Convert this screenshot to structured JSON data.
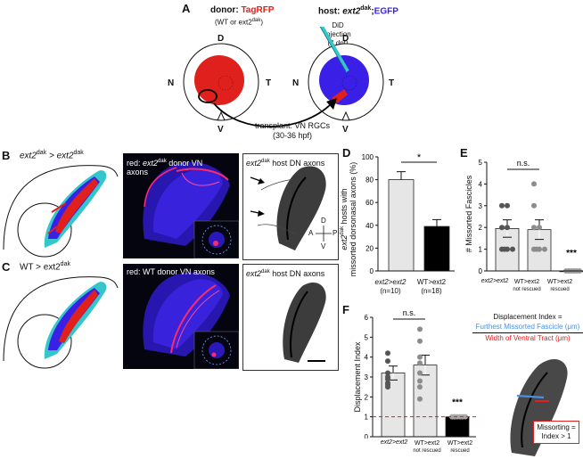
{
  "panels": {
    "A": "A",
    "B": "B",
    "C": "C",
    "D": "D",
    "E": "E",
    "F": "F"
  },
  "panel_a": {
    "donor_label": "donor:",
    "donor_name": "TagRFP",
    "donor_sub": "(WT or ext2",
    "donor_sub_sup": "dak",
    "donor_sub_end": ")",
    "host_label": "host:",
    "host_gene": "ext2",
    "host_gene_sup": "dak",
    "host_sep": ";",
    "host_egfp": "EGFP",
    "did_line1": "DiD",
    "did_line2": "injection",
    "did_line3": "(4 dpf)",
    "eye_left": {
      "top": "D",
      "left": "N",
      "right": "T",
      "bottom": "V"
    },
    "eye_right": {
      "top": "D",
      "left": "N",
      "right": "T",
      "bottom": "V"
    },
    "transplant_line1": "transplant: VN RGCs",
    "transplant_line2": "(30-36 hpf)",
    "colors": {
      "red": "#e0201c",
      "blue": "#3a1fe6",
      "teal": "#35c6cc"
    }
  },
  "panel_b": {
    "row_title_gene": "ext2",
    "row_title_sup": "dak",
    "row_title_mid": " > ext2",
    "row_title_sup2": "dak",
    "img1_cap_pre": "red: ",
    "img1_cap_gene": "ext2",
    "img1_cap_sup": "dak",
    "img1_cap_post": " donor VN",
    "img1_cap_line2": "axons",
    "img2_cap_gene": "ext2",
    "img2_cap_sup": "dak",
    "img2_cap_post": " host DN axons",
    "compass": {
      "d": "D",
      "v": "V",
      "a": "A",
      "p": "P"
    }
  },
  "panel_c": {
    "row_title_pre": "WT > ext2",
    "row_title_sup": "dak",
    "img1_cap": "red: WT donor VN axons",
    "img2_cap_gene": "ext2",
    "img2_cap_sup": "dak",
    "img2_cap_post": " host DN axons"
  },
  "panel_d": {
    "ylabel_line1": "ext2",
    "ylabel_sup": "dak",
    "ylabel_line1_post": " hosts with",
    "ylabel_line2": "missorted dorsonasal axons (%)",
    "sig": "*",
    "cat1": "ext2>ext2",
    "cat1_n": "(n=10)",
    "cat2": "WT>ext2",
    "cat2_n": "(n=18)"
  },
  "panel_e": {
    "ylabel": "# Missorted Fascicles",
    "sig": "n.s.",
    "sig2": "***",
    "cat1": "ext2>ext2",
    "cat2": "WT>ext2",
    "cat2_sub": "not rescued",
    "cat3": "WT>ext2",
    "cat3_sub": "rescued"
  },
  "panel_f": {
    "ylabel": "Displacement Index",
    "sig": "n.s.",
    "sig2": "***",
    "cat1": "ext2>ext2",
    "cat2": "WT>ext2",
    "cat2_sub": "not rescued",
    "cat3": "WT>ext2",
    "cat3_sub": "rescued",
    "legend_title": "Displacement Index =",
    "legend_num": "Furthest Missorted Fascicle (μm)",
    "legend_den": "Width of Ventral Tract (μm)",
    "box_line1": "Missorting =",
    "box_line2": "Index > 1"
  },
  "chart_data": [
    {
      "type": "bar",
      "panel": "D",
      "categories": [
        "ext2>ext2",
        "WT>ext2"
      ],
      "values": [
        80,
        39
      ],
      "errors": [
        7,
        6
      ],
      "colors": [
        "#e6e6e6",
        "#000000"
      ],
      "ylim": [
        0,
        100
      ],
      "yticks": [
        0,
        20,
        40,
        60,
        80,
        100
      ]
    },
    {
      "type": "bar",
      "panel": "E",
      "categories": [
        "ext2>ext2",
        "WT>ext2 not rescued",
        "WT>ext2 rescued"
      ],
      "values": [
        1.95,
        1.9,
        0
      ],
      "errors": [
        0.4,
        0.45,
        0
      ],
      "colors": [
        "#e6e6e6",
        "#e6e6e6",
        "#e6e6e6"
      ],
      "points": [
        [
          3,
          3,
          2,
          2,
          1,
          1,
          1,
          1
        ],
        [
          4,
          3,
          2,
          2,
          1,
          1,
          1,
          1
        ],
        [
          0,
          0,
          0,
          0,
          0,
          0,
          0
        ]
      ],
      "point_colors": [
        "#555555",
        "#8c8c8c",
        "#9a9a9a"
      ],
      "ylim": [
        0,
        5
      ],
      "yticks": [
        0,
        1,
        2,
        3,
        4,
        5
      ]
    },
    {
      "type": "bar",
      "panel": "F",
      "categories": [
        "ext2>ext2",
        "WT>ext2 not rescued",
        "WT>ext2 rescued"
      ],
      "values": [
        3.2,
        3.6,
        1.0
      ],
      "errors": [
        0.35,
        0.5,
        0.03
      ],
      "colors": [
        "#e6e6e6",
        "#e6e6e6",
        "#000000"
      ],
      "points": [
        [
          4.2,
          3.8,
          3.2,
          3.0,
          2.9,
          2.7,
          2.6,
          2.5
        ],
        [
          5.4,
          4.8,
          4.0,
          3.7,
          3.2,
          2.8,
          2.5,
          1.9
        ],
        [
          1.0,
          1.0,
          1.0,
          1.0,
          1.0,
          1.0,
          1.0
        ]
      ],
      "point_colors": [
        "#555555",
        "#8c8c8c",
        "#a6a6a6"
      ],
      "threshold": 1,
      "ylim": [
        0,
        6
      ],
      "yticks": [
        0,
        1,
        2,
        3,
        4,
        5,
        6
      ]
    }
  ]
}
